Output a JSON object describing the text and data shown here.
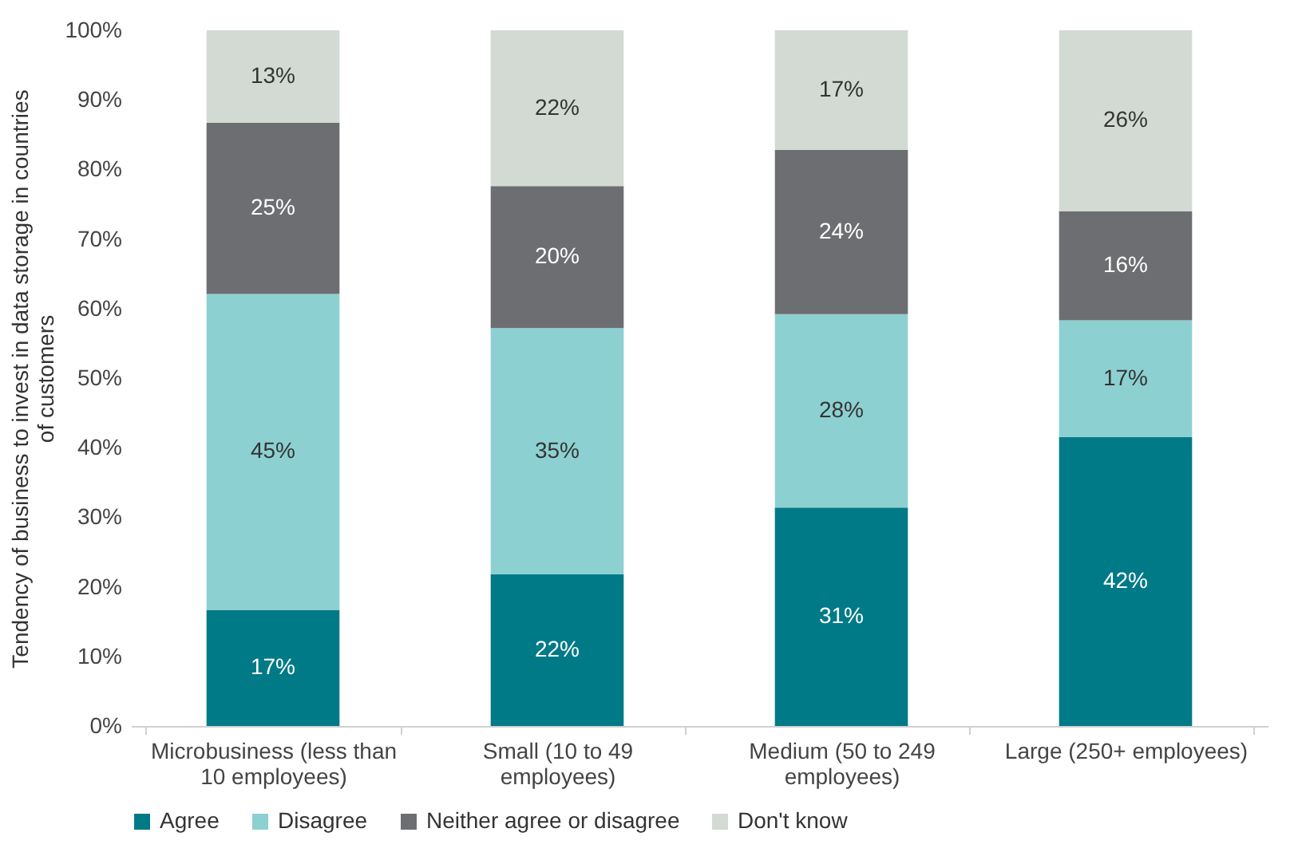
{
  "chart_data": {
    "type": "bar",
    "stacked": true,
    "ylabel": "Tendency of business to invest in data storage in countries of customers",
    "categories": [
      "Microbusiness (less than 10 employees)",
      "Small (10 to 49 employees)",
      "Medium (50 to 249 employees)",
      "Large (250+ employees)"
    ],
    "series": [
      {
        "name": "Agree",
        "color": "#007a87",
        "values": [
          16.7,
          21.8,
          31.4,
          41.5
        ],
        "value_labels": [
          "17%",
          "22%",
          "31%",
          "42%"
        ]
      },
      {
        "name": "Disagree",
        "color": "#8dd0d1",
        "values": [
          45.4,
          35.4,
          27.8,
          16.8
        ],
        "value_labels": [
          "45%",
          "35%",
          "28%",
          "17%"
        ]
      },
      {
        "name": "Neither agree or disagree",
        "color": "#6d6e71",
        "values": [
          24.6,
          20.4,
          23.6,
          15.7
        ],
        "value_labels": [
          "25%",
          "20%",
          "24%",
          "16%"
        ]
      },
      {
        "name": "Don't know",
        "color": "#d2dad3",
        "values": [
          13.3,
          22.4,
          17.2,
          26.0
        ],
        "value_labels": [
          "13%",
          "22%",
          "17%",
          "26%"
        ]
      }
    ],
    "ylim": [
      0,
      100
    ],
    "yticks": [
      {
        "value": 0,
        "label": "0%"
      },
      {
        "value": 10,
        "label": "10%"
      },
      {
        "value": 20,
        "label": "20%"
      },
      {
        "value": 30,
        "label": "30%"
      },
      {
        "value": 40,
        "label": "40%"
      },
      {
        "value": 50,
        "label": "50%"
      },
      {
        "value": 60,
        "label": "60%"
      },
      {
        "value": 70,
        "label": "70%"
      },
      {
        "value": 80,
        "label": "80%"
      },
      {
        "value": 90,
        "label": "90%"
      },
      {
        "value": 100,
        "label": "100%"
      }
    ],
    "grid": false,
    "legend": "bottom"
  }
}
